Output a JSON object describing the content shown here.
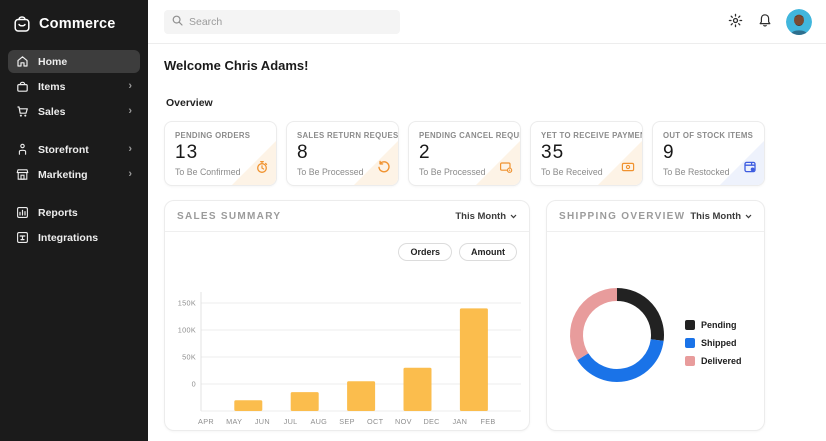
{
  "app": {
    "name": "Commerce"
  },
  "sidebar": {
    "items": [
      {
        "label": "Home",
        "active": true,
        "chevron": false
      },
      {
        "label": "Items",
        "active": false,
        "chevron": true
      },
      {
        "label": "Sales",
        "active": false,
        "chevron": true
      },
      {
        "label": "Storefront",
        "active": false,
        "chevron": true
      },
      {
        "label": "Marketing",
        "active": false,
        "chevron": true
      },
      {
        "label": "Reports",
        "active": false,
        "chevron": false
      },
      {
        "label": "Integrations",
        "active": false,
        "chevron": false
      }
    ]
  },
  "topbar": {
    "search_placeholder": "Search"
  },
  "main": {
    "welcome": "Welcome Chris Adams!",
    "section_title": "Overview"
  },
  "stat_cards": [
    {
      "title": "PENDING ORDERS",
      "value": "13",
      "subtitle": "To Be Confirmed",
      "icon": "stopwatch-icon",
      "accent": "#F0922F",
      "corner": "#FDF3E6"
    },
    {
      "title": "SALES RETURN REQUESTS",
      "value": "8",
      "subtitle": "To Be Processed",
      "icon": "rotate-ccw-icon",
      "accent": "#F0922F",
      "corner": "#FDF3E6"
    },
    {
      "title": "PENDING CANCEL REQUESTS",
      "value": "2",
      "subtitle": "To Be Processed",
      "icon": "card-gear-icon",
      "accent": "#F0922F",
      "corner": "#FDF3E6"
    },
    {
      "title": "YET TO RECEIVE PAYMENTS",
      "value": "35",
      "subtitle": "To Be Received",
      "icon": "banknote-icon",
      "accent": "#F0922F",
      "corner": "#FDF3E6"
    },
    {
      "title": "OUT OF STOCK ITEMS",
      "value": "9",
      "subtitle": "To Be Restocked",
      "icon": "box-icon",
      "accent": "#3D5CE0",
      "corner": "#EEF2FC"
    }
  ],
  "sales_card": {
    "title": "SALES SUMMARY",
    "range_label": "This Month",
    "toggles": [
      "Orders",
      "Amount"
    ]
  },
  "shipping_card": {
    "title": "SHIPPING OVERVIEW",
    "range_label": "This Month"
  },
  "chart_data": [
    {
      "type": "bar",
      "title": "Sales Summary",
      "range": "This Month",
      "x_tick_labels": [
        "APR",
        "MAY",
        "JUN",
        "JUL",
        "AUG",
        "SEP",
        "OCT",
        "NOV",
        "DEC",
        "JAN",
        "FEB"
      ],
      "bars": [
        {
          "position_between": [
            "MAY",
            "JUN"
          ],
          "value": -30000
        },
        {
          "position_between": [
            "JUL",
            "AUG"
          ],
          "value": -15000
        },
        {
          "position_between": [
            "SEP",
            "OCT"
          ],
          "value": 5000
        },
        {
          "position_between": [
            "NOV",
            "DEC"
          ],
          "value": 30000
        },
        {
          "position_between": [
            "JAN",
            "FEB"
          ],
          "value": 140000
        }
      ],
      "ylim": [
        -50000,
        165000
      ],
      "yticks": [
        {
          "label": "150K",
          "value": 150000
        },
        {
          "label": "100K",
          "value": 100000
        },
        {
          "label": "50K",
          "value": 50000
        },
        {
          "label": "0",
          "value": 0
        }
      ],
      "bar_color": "#FBBD4D",
      "grid": true,
      "legend": "none"
    },
    {
      "type": "pie",
      "donut": true,
      "title": "Shipping Overview",
      "range": "This Month",
      "labels": [
        "Pending",
        "Shipped",
        "Delivered"
      ],
      "values_pct": [
        27,
        39,
        34
      ],
      "colors": [
        "#222222",
        "#1A73E8",
        "#E89C9C"
      ],
      "legend_position": "right"
    }
  ]
}
